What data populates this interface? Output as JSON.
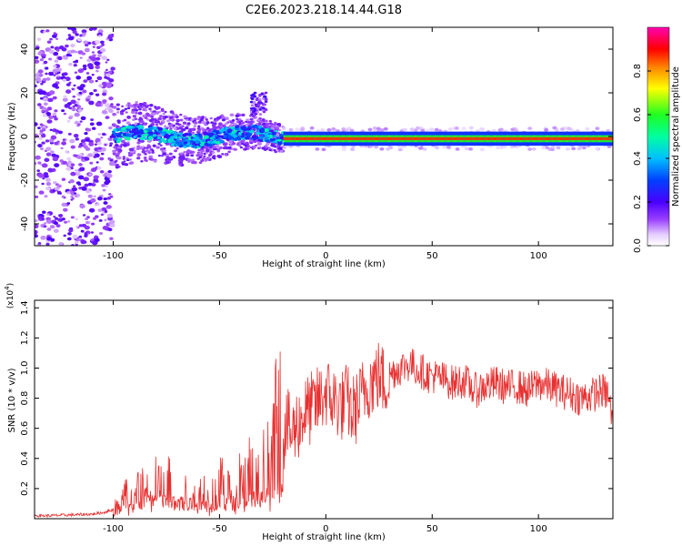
{
  "title": "C2E6.2023.218.14.44.G18",
  "chart_data": [
    {
      "type": "heatmap",
      "title": "C2E6.2023.218.14.44.G18",
      "xlabel": "Height of straight line (km)",
      "ylabel": "Frequency (Hz)",
      "xlim": [
        -137,
        135
      ],
      "ylim": [
        -50,
        50
      ],
      "xticks": [
        -100,
        -50,
        0,
        50,
        100
      ],
      "xtick_labels": [
        "-100",
        "-50",
        "0",
        "50",
        "100"
      ],
      "yticks": [
        -40,
        -20,
        0,
        20,
        40
      ],
      "ytick_labels": [
        "-40",
        "-20",
        "0",
        "20",
        "40"
      ],
      "colorbar": {
        "label": "Normalized spectral amplitude",
        "range": [
          0,
          1
        ],
        "ticks": [
          0.0,
          0.2,
          0.4,
          0.6,
          0.8
        ],
        "tick_labels": [
          "0.0",
          "0.2",
          "0.4",
          "0.6",
          "0.8"
        ],
        "colormap": "rainbow (white-violet-blue-cyan-green-yellow-red-magenta)"
      },
      "features": [
        {
          "region": "x from -137 to -100 km",
          "description": "diffuse low-amplitude scatter across full frequency range"
        },
        {
          "region": "x from -100 to -20 km",
          "description": "band near 0 Hz with amplitude 0.1-0.5, wider spread (about -10 to 10 Hz)"
        },
        {
          "region": "x from -35 to -28 km",
          "description": "weak branch rising to about 20 Hz"
        },
        {
          "region": "x from -20 to 135 km",
          "description": "narrow high-amplitude line at about -1 Hz, amplitude about 0.8-1.0"
        }
      ],
      "grid": false
    },
    {
      "type": "line",
      "xlabel": "Height of straight line (km)",
      "ylabel": "SNR (10 * v/v)",
      "y_multiplier": "(x10^4)",
      "xlim": [
        -137,
        135
      ],
      "ylim": [
        0,
        1.45
      ],
      "xticks": [
        -100,
        -50,
        0,
        50,
        100
      ],
      "xtick_labels": [
        "-100",
        "-50",
        "0",
        "50",
        "100"
      ],
      "yticks": [
        0.2,
        0.4,
        0.6,
        0.8,
        1.0,
        1.2,
        1.4
      ],
      "ytick_labels": [
        "0.2",
        "0.4",
        "0.6",
        "0.8",
        "1.0",
        "1.2",
        "1.4"
      ],
      "color": "#e83030",
      "series": [
        {
          "x": [
            -137,
            -130,
            -120,
            -110,
            -105,
            -100,
            -97,
            -95,
            -92,
            -90,
            -88,
            -85,
            -82,
            -80,
            -78,
            -75,
            -72,
            -70,
            -67,
            -65,
            -62,
            -60,
            -57,
            -55,
            -52,
            -50,
            -47,
            -45,
            -42,
            -40,
            -37,
            -35,
            -32,
            -30,
            -28,
            -26,
            -24,
            -22,
            -20,
            -18,
            -16,
            -14,
            -12,
            -10,
            -8,
            -5,
            -2,
            0,
            2,
            5,
            8,
            10,
            12,
            15,
            18,
            20,
            22,
            25,
            28,
            30,
            32,
            35,
            38,
            40,
            42,
            45,
            48,
            50,
            55,
            60,
            65,
            70,
            75,
            80,
            85,
            90,
            95,
            100,
            105,
            110,
            115,
            120,
            125,
            130,
            133,
            135
          ],
          "y": [
            0.02,
            0.02,
            0.025,
            0.03,
            0.04,
            0.06,
            0.1,
            0.15,
            0.2,
            0.18,
            0.22,
            0.2,
            0.25,
            0.28,
            0.22,
            0.24,
            0.2,
            0.18,
            0.2,
            0.15,
            0.17,
            0.14,
            0.18,
            0.16,
            0.2,
            0.22,
            0.22,
            0.2,
            0.25,
            0.28,
            0.3,
            0.32,
            0.3,
            0.35,
            0.3,
            0.45,
            0.55,
            0.6,
            0.55,
            0.62,
            0.55,
            0.62,
            0.65,
            0.7,
            0.72,
            0.75,
            0.8,
            0.85,
            0.8,
            0.78,
            0.75,
            0.8,
            0.7,
            0.75,
            0.85,
            0.9,
            0.92,
            0.95,
            0.9,
            0.95,
            0.98,
            1.0,
            1.02,
            1.03,
            1.0,
            0.98,
            0.95,
            0.95,
            0.93,
            0.9,
            0.92,
            0.85,
            0.88,
            0.9,
            0.87,
            0.88,
            0.85,
            0.9,
            0.88,
            0.85,
            0.83,
            0.8,
            0.82,
            0.85,
            0.82,
            0.6
          ]
        }
      ],
      "grid": false
    }
  ]
}
